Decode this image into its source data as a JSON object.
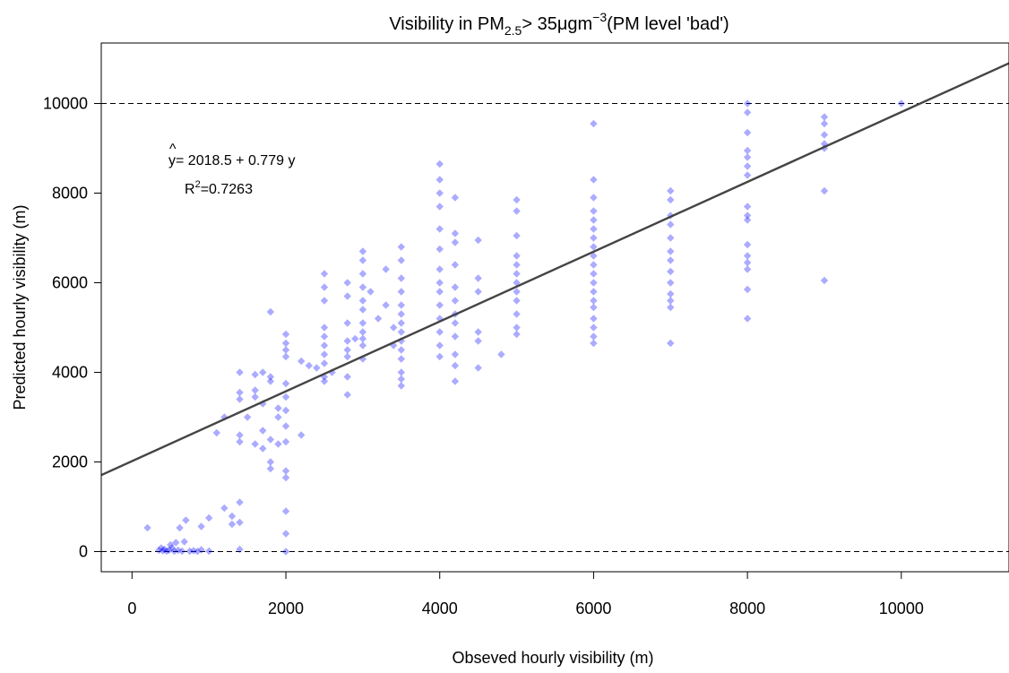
{
  "chart_data": {
    "type": "scatter",
    "title": {
      "prefix": "Visibility in PM",
      "subscript": "2.5",
      "middle": "> 35μgm",
      "superscript": "−3",
      "suffix": "(PM level 'bad')"
    },
    "xlabel": "Obseved hourly visibility (m)",
    "ylabel": "Predicted hourly visibility (m)",
    "xlim": [
      -400,
      11400
    ],
    "ylim": [
      -450,
      11350
    ],
    "xticks": [
      0,
      2000,
      4000,
      6000,
      8000,
      10000
    ],
    "xtick_labels": [
      "0",
      "2000",
      "4000",
      "6000",
      "8000",
      "10000"
    ],
    "yticks": [
      0,
      2000,
      4000,
      6000,
      8000,
      10000
    ],
    "ytick_labels": [
      "0",
      "2000",
      "4000",
      "6000",
      "8000",
      "10000"
    ],
    "reference_lines_y": [
      0,
      10000
    ],
    "regression": {
      "intercept": 2018.5,
      "slope": 0.779
    },
    "equation_label": {
      "lhs": "y",
      "rhs": "= 2018.5 + 0.779 y",
      "r2_prefix": "R",
      "r2_exp": "2",
      "r2_value": "=0.7263"
    },
    "grid": false,
    "colors": {
      "points": "#0000ff",
      "line": "#444444",
      "axis": "#000000",
      "refline": "#000000"
    },
    "points": [
      [
        200,
        530
      ],
      [
        350,
        30
      ],
      [
        380,
        80
      ],
      [
        400,
        20
      ],
      [
        420,
        50
      ],
      [
        450,
        10
      ],
      [
        480,
        30
      ],
      [
        500,
        150
      ],
      [
        520,
        80
      ],
      [
        550,
        10
      ],
      [
        570,
        200
      ],
      [
        600,
        30
      ],
      [
        620,
        530
      ],
      [
        650,
        10
      ],
      [
        680,
        220
      ],
      [
        700,
        700
      ],
      [
        750,
        10
      ],
      [
        800,
        20
      ],
      [
        850,
        5
      ],
      [
        900,
        40
      ],
      [
        900,
        560
      ],
      [
        1000,
        750
      ],
      [
        1000,
        10
      ],
      [
        1100,
        2650
      ],
      [
        1200,
        970
      ],
      [
        1200,
        3000
      ],
      [
        1300,
        790
      ],
      [
        1300,
        610
      ],
      [
        1400,
        650
      ],
      [
        1400,
        4000
      ],
      [
        1400,
        3550
      ],
      [
        1400,
        3400
      ],
      [
        1400,
        2600
      ],
      [
        1400,
        2450
      ],
      [
        1400,
        1100
      ],
      [
        1400,
        50
      ],
      [
        1500,
        3000
      ],
      [
        1600,
        3950
      ],
      [
        1600,
        3600
      ],
      [
        1600,
        3450
      ],
      [
        1600,
        2400
      ],
      [
        1700,
        3300
      ],
      [
        1700,
        4000
      ],
      [
        1700,
        2700
      ],
      [
        1700,
        2300
      ],
      [
        1800,
        5350
      ],
      [
        1800,
        3900
      ],
      [
        1800,
        3800
      ],
      [
        1800,
        2500
      ],
      [
        1800,
        2000
      ],
      [
        1800,
        1850
      ],
      [
        1900,
        3200
      ],
      [
        1900,
        3000
      ],
      [
        1900,
        2400
      ],
      [
        2000,
        4850
      ],
      [
        2000,
        4650
      ],
      [
        2000,
        4500
      ],
      [
        2000,
        4350
      ],
      [
        2000,
        3750
      ],
      [
        2000,
        3450
      ],
      [
        2000,
        3150
      ],
      [
        2000,
        2800
      ],
      [
        2000,
        2450
      ],
      [
        2000,
        1800
      ],
      [
        2000,
        1650
      ],
      [
        2000,
        900
      ],
      [
        2000,
        400
      ],
      [
        2000,
        0
      ],
      [
        2200,
        4250
      ],
      [
        2200,
        2600
      ],
      [
        2300,
        4150
      ],
      [
        2400,
        4100
      ],
      [
        2500,
        6200
      ],
      [
        2500,
        5900
      ],
      [
        2500,
        5600
      ],
      [
        2500,
        5000
      ],
      [
        2500,
        4800
      ],
      [
        2500,
        4600
      ],
      [
        2500,
        4400
      ],
      [
        2500,
        4200
      ],
      [
        2500,
        3900
      ],
      [
        2500,
        3800
      ],
      [
        2600,
        4000
      ],
      [
        2800,
        6000
      ],
      [
        2800,
        5700
      ],
      [
        2800,
        5100
      ],
      [
        2800,
        4700
      ],
      [
        2800,
        4500
      ],
      [
        2800,
        4350
      ],
      [
        2800,
        3900
      ],
      [
        2800,
        3500
      ],
      [
        2900,
        4750
      ],
      [
        3000,
        6700
      ],
      [
        3000,
        6500
      ],
      [
        3000,
        6200
      ],
      [
        3000,
        5900
      ],
      [
        3000,
        5600
      ],
      [
        3000,
        5400
      ],
      [
        3000,
        5100
      ],
      [
        3000,
        4900
      ],
      [
        3000,
        4750
      ],
      [
        3000,
        4600
      ],
      [
        3000,
        4300
      ],
      [
        3100,
        5800
      ],
      [
        3200,
        5200
      ],
      [
        3300,
        6300
      ],
      [
        3300,
        5500
      ],
      [
        3400,
        5000
      ],
      [
        3400,
        4600
      ],
      [
        3500,
        6800
      ],
      [
        3500,
        6500
      ],
      [
        3500,
        6100
      ],
      [
        3500,
        5800
      ],
      [
        3500,
        5500
      ],
      [
        3500,
        5300
      ],
      [
        3500,
        5100
      ],
      [
        3500,
        4900
      ],
      [
        3500,
        4700
      ],
      [
        3500,
        4500
      ],
      [
        3500,
        4000
      ],
      [
        3500,
        3850
      ],
      [
        3500,
        3700
      ],
      [
        3500,
        4300
      ],
      [
        4000,
        8650
      ],
      [
        4000,
        8300
      ],
      [
        4000,
        8000
      ],
      [
        4000,
        7700
      ],
      [
        4000,
        7200
      ],
      [
        4000,
        6750
      ],
      [
        4000,
        6300
      ],
      [
        4000,
        6000
      ],
      [
        4000,
        5800
      ],
      [
        4000,
        5500
      ],
      [
        4000,
        5200
      ],
      [
        4000,
        4900
      ],
      [
        4000,
        4600
      ],
      [
        4000,
        4350
      ],
      [
        4200,
        7900
      ],
      [
        4200,
        7100
      ],
      [
        4200,
        6900
      ],
      [
        4200,
        6400
      ],
      [
        4200,
        5900
      ],
      [
        4200,
        5600
      ],
      [
        4200,
        5300
      ],
      [
        4200,
        5100
      ],
      [
        4200,
        4800
      ],
      [
        4200,
        4400
      ],
      [
        4200,
        4150
      ],
      [
        4200,
        3800
      ],
      [
        4500,
        6950
      ],
      [
        4500,
        6100
      ],
      [
        4500,
        5800
      ],
      [
        4500,
        4900
      ],
      [
        4500,
        4700
      ],
      [
        4500,
        4100
      ],
      [
        4800,
        4400
      ],
      [
        5000,
        7850
      ],
      [
        5000,
        7600
      ],
      [
        5000,
        7050
      ],
      [
        5000,
        6600
      ],
      [
        5000,
        6400
      ],
      [
        5000,
        6200
      ],
      [
        5000,
        6000
      ],
      [
        5000,
        5800
      ],
      [
        5000,
        5600
      ],
      [
        5000,
        5300
      ],
      [
        5000,
        5000
      ],
      [
        5000,
        4850
      ],
      [
        6000,
        9550
      ],
      [
        6000,
        8300
      ],
      [
        6000,
        7900
      ],
      [
        6000,
        7600
      ],
      [
        6000,
        7400
      ],
      [
        6000,
        7200
      ],
      [
        6000,
        7000
      ],
      [
        6000,
        6800
      ],
      [
        6000,
        6600
      ],
      [
        6000,
        6400
      ],
      [
        6000,
        6200
      ],
      [
        6000,
        6000
      ],
      [
        6000,
        5800
      ],
      [
        6000,
        5600
      ],
      [
        6000,
        5450
      ],
      [
        6000,
        5200
      ],
      [
        6000,
        5000
      ],
      [
        6000,
        4800
      ],
      [
        6000,
        4650
      ],
      [
        7000,
        8050
      ],
      [
        7000,
        7850
      ],
      [
        7000,
        7500
      ],
      [
        7000,
        7300
      ],
      [
        7000,
        7000
      ],
      [
        7000,
        6700
      ],
      [
        7000,
        6500
      ],
      [
        7000,
        6250
      ],
      [
        7000,
        6000
      ],
      [
        7000,
        5750
      ],
      [
        7000,
        5600
      ],
      [
        7000,
        5450
      ],
      [
        7000,
        4650
      ],
      [
        8000,
        10000
      ],
      [
        8000,
        9800
      ],
      [
        8000,
        9350
      ],
      [
        8000,
        8950
      ],
      [
        8000,
        8800
      ],
      [
        8000,
        8600
      ],
      [
        8000,
        8400
      ],
      [
        8000,
        7700
      ],
      [
        8000,
        7500
      ],
      [
        8000,
        7400
      ],
      [
        8000,
        6850
      ],
      [
        8000,
        6600
      ],
      [
        8000,
        6450
      ],
      [
        8000,
        6300
      ],
      [
        8000,
        5850
      ],
      [
        8000,
        5200
      ],
      [
        9000,
        9700
      ],
      [
        9000,
        9550
      ],
      [
        9000,
        9300
      ],
      [
        9000,
        9100
      ],
      [
        9000,
        9000
      ],
      [
        9000,
        8050
      ],
      [
        9000,
        6050
      ],
      [
        10000,
        10000
      ]
    ]
  }
}
